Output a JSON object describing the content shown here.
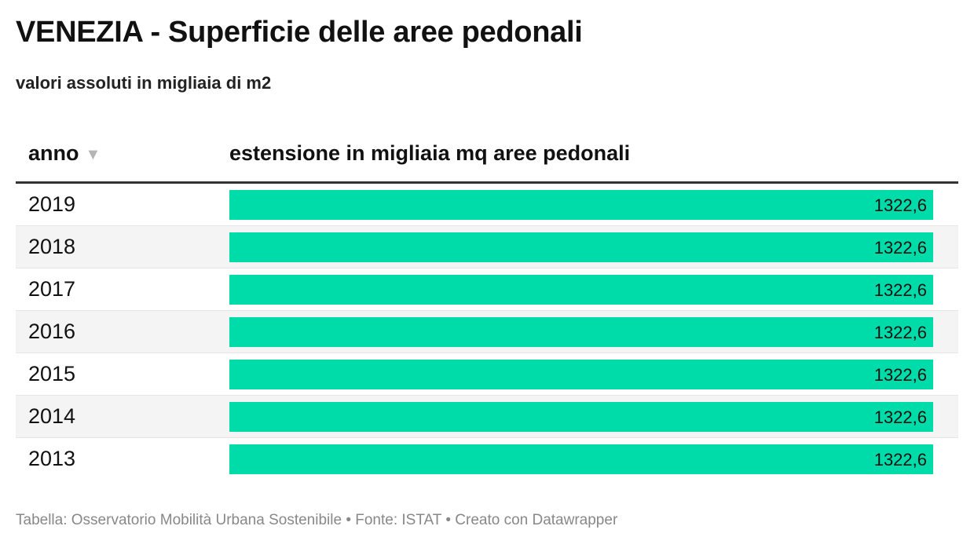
{
  "title": "VENEZIA - Superficie delle aree pedonali",
  "subtitle": "valori assoluti in migliaia di m2",
  "table": {
    "col_year": "anno",
    "col_value": "estensione in migliaia mq aree pedonali",
    "sort_icon": "sort-descending-icon",
    "bar_color": "#00dca9",
    "rows": [
      {
        "year": "2019",
        "value_label": "1322,6"
      },
      {
        "year": "2018",
        "value_label": "1322,6"
      },
      {
        "year": "2017",
        "value_label": "1322,6"
      },
      {
        "year": "2016",
        "value_label": "1322,6"
      },
      {
        "year": "2015",
        "value_label": "1322,6"
      },
      {
        "year": "2014",
        "value_label": "1322,6"
      },
      {
        "year": "2013",
        "value_label": "1322,6"
      }
    ]
  },
  "footer": "Tabella: Osservatorio Mobilità Urbana Sostenibile • Fonte: ISTAT • Creato con Datawrapper",
  "chart_data": {
    "type": "table",
    "title": "VENEZIA - Superficie delle aree pedonali",
    "subtitle": "valori assoluti in migliaia di m2",
    "columns": [
      "anno",
      "estensione in migliaia mq aree pedonali"
    ],
    "categories": [
      "2019",
      "2018",
      "2017",
      "2016",
      "2015",
      "2014",
      "2013"
    ],
    "values": [
      1322.6,
      1322.6,
      1322.6,
      1322.6,
      1322.6,
      1322.6,
      1322.6
    ],
    "bar_max": 1322.6
  }
}
